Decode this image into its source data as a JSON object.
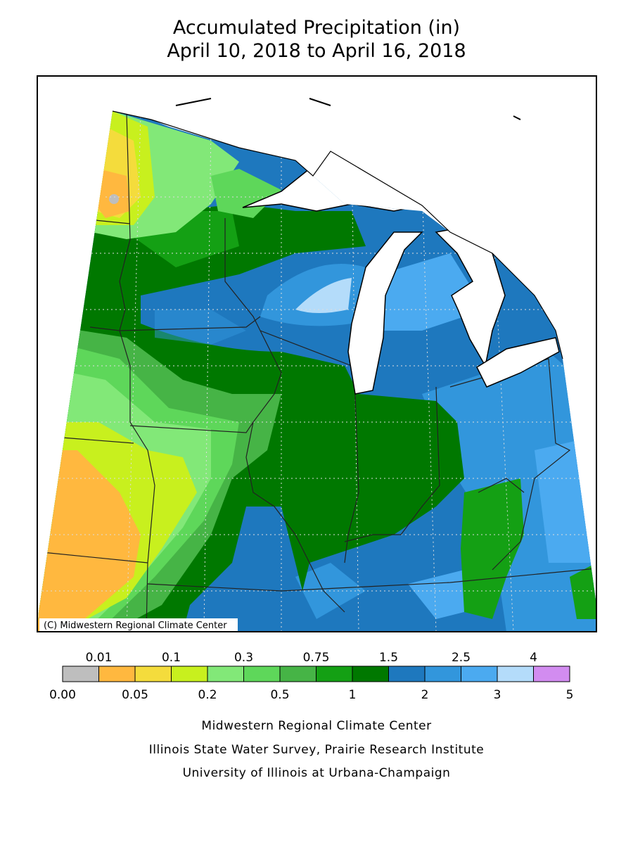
{
  "header": {
    "title": [
      "Accumulated Precipitation (in)",
      "April 10, 2018 to April 16, 2018"
    ]
  },
  "map": {
    "copyright": "(C) Midwestern Regional Climate Center"
  },
  "legend": {
    "colors": [
      "#bebebe",
      "#ffb83f",
      "#f4dc3c",
      "#c8f01e",
      "#82e878",
      "#5ed75a",
      "#46b446",
      "#14a014",
      "#007800",
      "#1e78be",
      "#3296dc",
      "#4baaf0",
      "#b4dcfa",
      "#d28cf0"
    ],
    "upper_labels": [
      "0.01",
      "0.1",
      "0.3",
      "0.75",
      "1.5",
      "2.5",
      "4"
    ],
    "lower_labels": [
      "0.00",
      "0.05",
      "0.2",
      "0.5",
      "1",
      "2",
      "3",
      "5"
    ]
  },
  "footer": {
    "credits": [
      "Midwestern Regional Climate Center",
      "Illinois State Water Survey, Prairie Research Institute",
      "University of Illinois at Urbana-Champaign"
    ]
  }
}
